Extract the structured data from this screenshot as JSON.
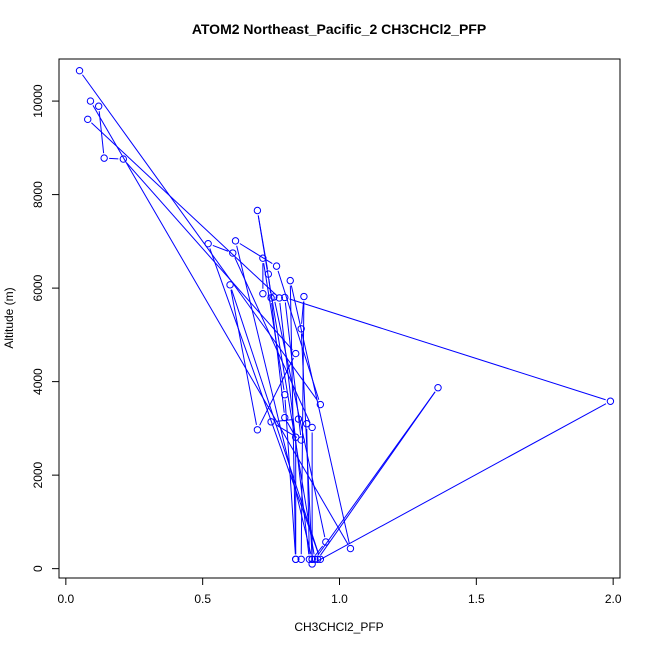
{
  "chart_data": {
    "type": "line",
    "title": "ATOM2 Northeast_Pacific_2 CH3CHCl2_PFP",
    "xlabel": "CH3CHCl2_PFP",
    "ylabel": "Altitude (m)",
    "xlim": [
      -0.025,
      2.025
    ],
    "ylim": [
      -200,
      10900
    ],
    "xticks": [
      0.0,
      0.5,
      1.0,
      1.5,
      2.0
    ],
    "xtick_labels": [
      "0.0",
      "0.5",
      "1.0",
      "1.5",
      "2.0"
    ],
    "yticks": [
      0,
      2000,
      4000,
      6000,
      8000,
      10000
    ],
    "ytick_labels": [
      "0",
      "2000",
      "4000",
      "6000",
      "8000",
      "10000"
    ],
    "grid": false,
    "legend": "none",
    "color": "#0000ff",
    "series": [
      {
        "points": [
          [
            0.05,
            10650
          ],
          [
            0.93,
            3510
          ],
          [
            0.77,
            6470
          ],
          [
            0.62,
            7010
          ],
          [
            0.9,
            200
          ],
          [
            0.95,
            570
          ],
          [
            0.76,
            5810
          ],
          [
            0.72,
            5880
          ],
          [
            0.72,
            6640
          ],
          [
            0.8,
            3720
          ],
          [
            0.84,
            200
          ],
          [
            0.86,
            200
          ],
          [
            0.87,
            5820
          ],
          [
            0.86,
            5130
          ],
          [
            0.9,
            200
          ],
          [
            0.92,
            200
          ],
          [
            1.36,
            3870
          ],
          [
            0.91,
            200
          ],
          [
            0.7,
            7660
          ],
          [
            0.74,
            6300
          ],
          [
            0.75,
            5790
          ],
          [
            0.8,
            3230
          ],
          [
            0.84,
            2810
          ],
          [
            0.84,
            200
          ],
          [
            0.82,
            6160
          ],
          [
            1.04,
            430
          ],
          [
            0.09,
            10000
          ],
          [
            0.12,
            9890
          ],
          [
            0.14,
            8780
          ],
          [
            0.21,
            8760
          ],
          [
            0.84,
            4600
          ],
          [
            0.7,
            2970
          ],
          [
            0.6,
            6070
          ],
          [
            0.93,
            200
          ],
          [
            0.52,
            6950
          ],
          [
            0.61,
            6750
          ],
          [
            0.9,
            3020
          ],
          [
            0.9,
            100
          ],
          [
            1.99,
            3580
          ],
          [
            0.8,
            5800
          ],
          [
            0.86,
            2750
          ],
          [
            0.75,
            3140
          ],
          [
            0.85,
            3200
          ],
          [
            0.88,
            3100
          ],
          [
            0.89,
            200
          ],
          [
            0.78,
            5790
          ],
          [
            0.08,
            9610
          ]
        ]
      }
    ]
  }
}
